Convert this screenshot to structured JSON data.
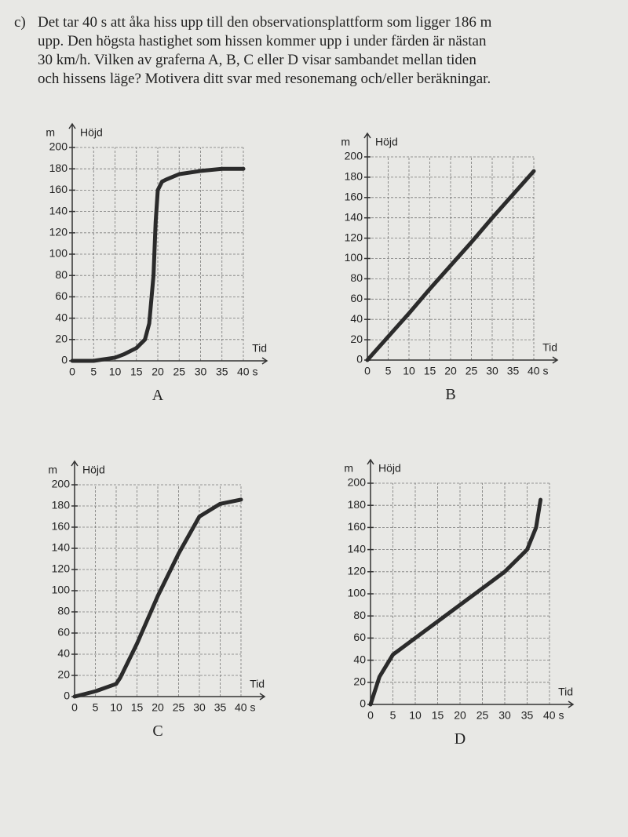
{
  "question": {
    "label": "c)",
    "lines": [
      "Det tar 40 s att åka hiss upp till den observationsplattform som ligger 186 m",
      "upp. Den högsta hastighet som hissen kommer upp i under färden är nästan",
      "30 km/h. Vilken av graferna A, B, C eller D visar sambandet mellan tiden",
      "och hissens läge? Motivera ditt svar med resonemang och/eller beräkningar."
    ]
  },
  "chart_data": [
    {
      "type": "line",
      "title": "A",
      "ylabel": "Höjd",
      "yunit": "m",
      "xlabel": "Tid",
      "grid": true,
      "xlim": [
        0,
        40
      ],
      "ylim": [
        0,
        200
      ],
      "xticks": [
        0,
        5,
        10,
        15,
        20,
        25,
        30,
        35,
        {
          "value": 40,
          "label": "40 s"
        }
      ],
      "yticks": [
        0,
        20,
        40,
        60,
        80,
        100,
        120,
        140,
        160,
        180,
        200
      ],
      "series": [
        {
          "color": "#2b2b2b",
          "x": [
            0,
            5,
            10,
            12,
            15,
            17,
            18,
            19,
            19.5,
            20,
            21,
            22,
            25,
            30,
            35,
            40
          ],
          "values": [
            0,
            0,
            3,
            6,
            12,
            20,
            35,
            80,
            130,
            160,
            168,
            170,
            175,
            178,
            180,
            180
          ]
        }
      ]
    },
    {
      "type": "line",
      "title": "B",
      "ylabel": "Höjd",
      "yunit": "m",
      "xlabel": "Tid",
      "grid": true,
      "xlim": [
        0,
        40
      ],
      "ylim": [
        0,
        200
      ],
      "xticks": [
        0,
        5,
        10,
        15,
        20,
        25,
        30,
        35,
        {
          "value": 40,
          "label": "40 s"
        }
      ],
      "yticks": [
        0,
        20,
        40,
        60,
        80,
        100,
        120,
        140,
        160,
        180,
        200
      ],
      "series": [
        {
          "color": "#2b2b2b",
          "x": [
            0,
            5,
            10,
            15,
            20,
            25,
            30,
            35,
            40
          ],
          "values": [
            0,
            23,
            46,
            70,
            93,
            116,
            140,
            163,
            186
          ]
        }
      ]
    },
    {
      "type": "line",
      "title": "C",
      "ylabel": "Höjd",
      "yunit": "m",
      "xlabel": "Tid",
      "grid": true,
      "xlim": [
        0,
        40
      ],
      "ylim": [
        0,
        200
      ],
      "xticks": [
        0,
        5,
        10,
        15,
        20,
        25,
        30,
        35,
        {
          "value": 40,
          "label": "40 s"
        }
      ],
      "yticks": [
        0,
        20,
        40,
        60,
        80,
        100,
        120,
        140,
        160,
        180,
        200
      ],
      "series": [
        {
          "color": "#2b2b2b",
          "x": [
            0,
            5,
            10,
            11,
            15,
            20,
            25,
            30,
            35,
            40
          ],
          "values": [
            0,
            5,
            12,
            18,
            50,
            95,
            135,
            170,
            182,
            186
          ]
        }
      ]
    },
    {
      "type": "line",
      "title": "D",
      "ylabel": "Höjd",
      "yunit": "m",
      "xlabel": "Tid",
      "grid": true,
      "xlim": [
        0,
        40
      ],
      "ylim": [
        0,
        200
      ],
      "xticks": [
        0,
        5,
        10,
        15,
        20,
        25,
        30,
        35,
        {
          "value": 40,
          "label": "40 s"
        }
      ],
      "yticks": [
        0,
        20,
        40,
        60,
        80,
        100,
        120,
        140,
        160,
        180,
        200
      ],
      "series": [
        {
          "color": "#2b2b2b",
          "x": [
            0,
            2,
            5,
            10,
            15,
            20,
            25,
            30,
            35,
            37,
            38
          ],
          "values": [
            0,
            25,
            45,
            60,
            75,
            90,
            105,
            120,
            140,
            160,
            185
          ]
        }
      ]
    }
  ]
}
